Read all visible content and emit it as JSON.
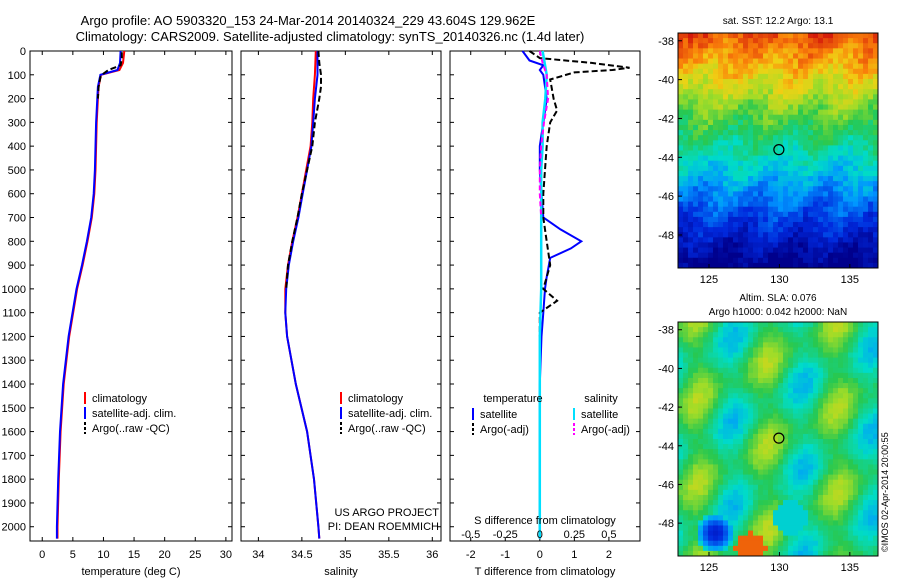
{
  "header": {
    "title_line1": "Argo profile: AO 5903320_153 24-Mar-2014 20140324_229 43.604S 129.962E",
    "title_line2": "Climatology: CARS2009. Satellite-adjusted climatology: synTS_20140326.nc (1.4d later)"
  },
  "colors": {
    "climatology": "#ff0000",
    "satellite": "#0000ff",
    "argo": "#000000",
    "salinity_sat": "#00e0ff",
    "salinity_argo": "#ff00ff"
  },
  "chart_data": [
    {
      "type": "line",
      "xlabel": "temperature (deg C)",
      "xlim": [
        -2,
        31
      ],
      "ylim": [
        0,
        2060
      ],
      "xticks": [
        0,
        5,
        10,
        15,
        20,
        25,
        30
      ],
      "yticks": [
        0,
        100,
        200,
        300,
        400,
        500,
        600,
        700,
        800,
        900,
        1000,
        1100,
        1200,
        1300,
        1400,
        1500,
        1600,
        1700,
        1800,
        1900,
        2000
      ],
      "legend": [
        "climatology",
        "satellite-adj. clim.",
        "Argo(..raw -QC)"
      ],
      "series": [
        {
          "name": "climatology",
          "depth": [
            0,
            50,
            80,
            100,
            150,
            200,
            300,
            400,
            500,
            600,
            700,
            800,
            900,
            1000,
            1200,
            1400,
            1600,
            1800,
            2000,
            2050
          ],
          "values": [
            13.4,
            13.2,
            12.6,
            9.6,
            9.2,
            9.1,
            8.9,
            8.8,
            8.7,
            8.5,
            8.1,
            7.4,
            6.6,
            5.7,
            4.4,
            3.5,
            3.0,
            2.7,
            2.5,
            2.5
          ]
        },
        {
          "name": "satellite-adj. clim.",
          "depth": [
            0,
            50,
            80,
            100,
            150,
            200,
            300,
            400,
            500,
            600,
            700,
            800,
            900,
            1000,
            1200,
            1400,
            1600,
            1800,
            2000,
            2050
          ],
          "values": [
            12.8,
            12.7,
            12.3,
            9.5,
            9.1,
            9.0,
            8.8,
            8.7,
            8.6,
            8.4,
            8.0,
            7.3,
            6.5,
            5.6,
            4.3,
            3.4,
            2.9,
            2.6,
            2.4,
            2.4
          ]
        },
        {
          "name": "Argo(..raw -QC)",
          "depth": [
            5,
            30,
            60,
            80,
            95,
            110,
            150,
            200
          ],
          "values": [
            13.0,
            13.0,
            12.8,
            10.8,
            10.0,
            9.5,
            9.2,
            9.1
          ]
        }
      ]
    },
    {
      "type": "line",
      "xlabel": "salinity",
      "xlim": [
        33.8,
        36.1
      ],
      "ylim": [
        0,
        2060
      ],
      "xticks": [
        34,
        34.5,
        35,
        35.5,
        36
      ],
      "xtick_labels": [
        "34",
        "34.5",
        "35",
        "35.5",
        "36"
      ],
      "legend": [
        "climatology",
        "satellite-adj. clim.",
        "Argo(..raw -QC)"
      ],
      "annotation": [
        "US ARGO PROJECT",
        "PI: DEAN ROEMMICH"
      ],
      "series": [
        {
          "name": "climatology",
          "depth": [
            0,
            100,
            200,
            300,
            400,
            500,
            600,
            700,
            800,
            900,
            1000,
            1100,
            1200,
            1400,
            1600,
            1800,
            2000,
            2050
          ],
          "values": [
            34.66,
            34.65,
            34.63,
            34.62,
            34.6,
            34.55,
            34.5,
            34.45,
            34.39,
            34.34,
            34.31,
            34.31,
            34.33,
            34.43,
            34.56,
            34.64,
            34.69,
            34.7
          ]
        },
        {
          "name": "satellite-adj. clim.",
          "depth": [
            0,
            100,
            200,
            300,
            400,
            500,
            600,
            700,
            800,
            900,
            1000,
            1100,
            1200,
            1400,
            1600,
            1800,
            2000,
            2050
          ],
          "values": [
            34.68,
            34.68,
            34.65,
            34.63,
            34.61,
            34.56,
            34.51,
            34.46,
            34.4,
            34.35,
            34.32,
            34.31,
            34.33,
            34.43,
            34.56,
            34.64,
            34.69,
            34.7
          ]
        },
        {
          "name": "Argo(..raw -QC)",
          "depth": [
            0,
            50,
            100,
            150,
            200,
            300,
            400,
            500,
            600,
            700,
            800,
            900,
            1000
          ],
          "values": [
            34.69,
            34.7,
            34.72,
            34.72,
            34.7,
            34.65,
            34.62,
            34.56,
            34.5,
            34.45,
            34.39,
            34.34,
            34.32
          ]
        }
      ]
    },
    {
      "type": "line",
      "xlabel": "T difference from climatology",
      "xlabel_top": "S difference from climatology",
      "xlim": [
        -2.6,
        2.9
      ],
      "ylim": [
        0,
        2060
      ],
      "xticks": [
        -2,
        -1,
        0,
        1,
        2
      ],
      "xticks_top": [
        -0.5,
        -0.25,
        0,
        0.25,
        0.5
      ],
      "xtick_labels_top": [
        "-0.5",
        "-0.25",
        "0",
        "0.25",
        "0.5"
      ],
      "legend_titles": [
        "temperature",
        "salinity"
      ],
      "legend": [
        "satellite",
        "Argo(-adj)",
        "satellite",
        "Argo(-adj)"
      ],
      "series": [
        {
          "name": "satellite",
          "depth": [
            0,
            40,
            60,
            80,
            100,
            200,
            300,
            400,
            500,
            600,
            700,
            750,
            800,
            830,
            870,
            950,
            1000,
            1100,
            1200,
            1400,
            1600,
            1800,
            2000,
            2050
          ],
          "values": [
            -0.5,
            -0.3,
            0.1,
            0.0,
            0.1,
            0.2,
            0.1,
            0.0,
            0.0,
            0.05,
            0.1,
            0.6,
            1.2,
            0.9,
            0.3,
            0.2,
            0.15,
            0.1,
            0.05,
            0.0,
            0.0,
            0.0,
            0.0,
            0.0
          ]
        },
        {
          "name": "Argo(-adj)",
          "depth": [
            0,
            30,
            50,
            70,
            80,
            90,
            120,
            200,
            250,
            300,
            400,
            500,
            600,
            700,
            800,
            900,
            1000,
            1050,
            1100,
            1200
          ],
          "values": [
            -0.3,
            0.0,
            1.5,
            2.6,
            2.1,
            1.0,
            0.3,
            0.4,
            0.5,
            0.3,
            0.2,
            0.15,
            0.1,
            0.1,
            0.2,
            0.3,
            0.1,
            0.5,
            0.0,
            0.0
          ]
        },
        {
          "name": "salinity satellite",
          "depth": [
            0,
            100,
            200,
            300,
            400,
            500,
            700,
            900,
            1000,
            1200,
            1400,
            1600,
            1800,
            2000,
            2050
          ],
          "values": [
            0.02,
            0.05,
            0.04,
            0.02,
            0.02,
            0.01,
            0.01,
            0.01,
            0.01,
            0.0,
            0.0,
            0.0,
            0.0,
            0.0,
            0.0
          ]
        },
        {
          "name": "salinity Argo(-adj)",
          "depth": [
            0,
            50,
            100,
            200,
            300,
            400,
            500,
            600,
            700
          ],
          "values": [
            0.0,
            0.02,
            0.05,
            0.06,
            0.03,
            0.01,
            0.0,
            0.0,
            0.01
          ]
        }
      ]
    },
    {
      "type": "heatmap",
      "title": "sat. SST: 12.2  Argo: 13.1",
      "xlim": [
        122.8,
        137
      ],
      "ylim": [
        -49.7,
        -37.6
      ],
      "xticks": [
        125,
        130,
        135
      ],
      "yticks": [
        -38,
        -40,
        -42,
        -44,
        -46,
        -48
      ],
      "argo_position": {
        "lon": 129.962,
        "lat": -43.604
      }
    },
    {
      "type": "heatmap",
      "title": "Altim. SLA: 0.076",
      "subtitle": "Argo h1000: 0.042 h2000: NaN",
      "xlim": [
        122.8,
        137
      ],
      "ylim": [
        -49.7,
        -37.6
      ],
      "xticks": [
        125,
        130,
        135
      ],
      "yticks": [
        -38,
        -40,
        -42,
        -44,
        -46,
        -48
      ],
      "argo_position": {
        "lon": 129.962,
        "lat": -43.604
      }
    }
  ],
  "side_label": "©IMOS 02-Apr-2014 20:00:55"
}
